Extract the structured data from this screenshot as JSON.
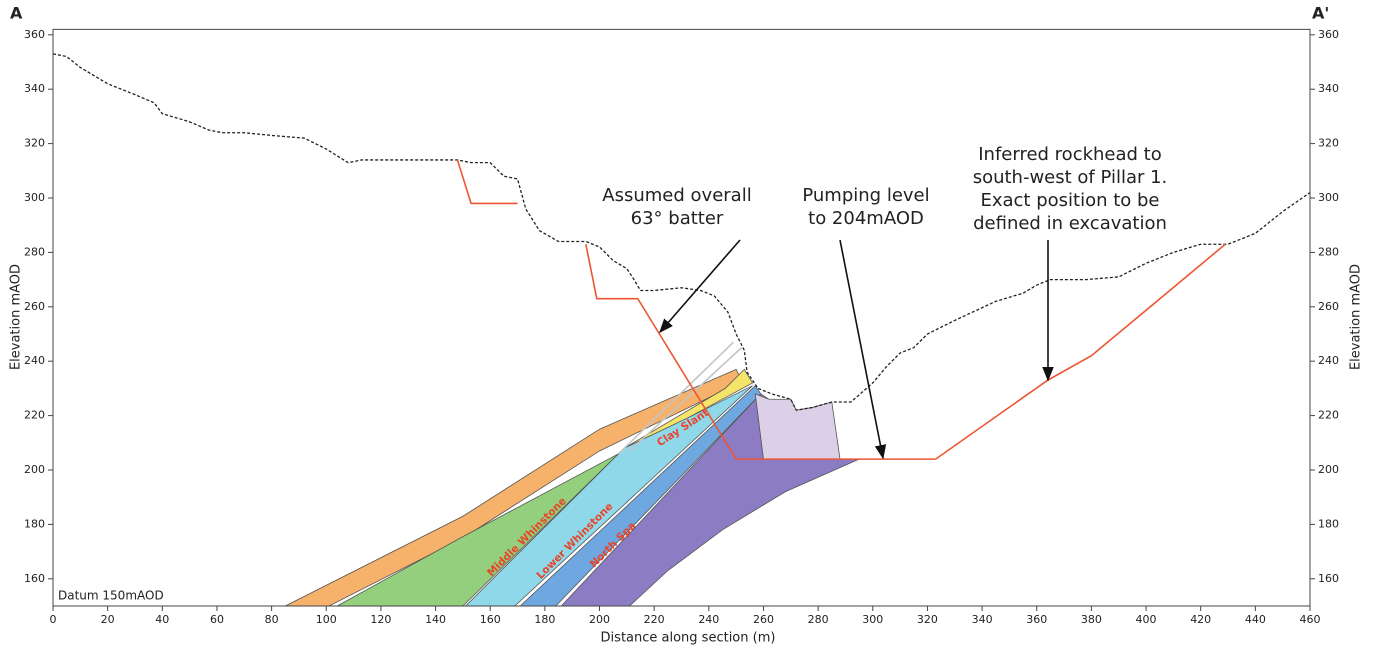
{
  "chart_data": {
    "type": "line",
    "section_start": "A",
    "section_end": "A'",
    "datum": "Datum 150mAOD",
    "xlabel": "Distance along section (m)",
    "ylabel": "Elevation mAOD",
    "y2label": "Elevation mAOD",
    "xlim": [
      0,
      460
    ],
    "xticks": [
      0,
      20,
      40,
      60,
      80,
      100,
      120,
      140,
      160,
      180,
      200,
      220,
      240,
      260,
      280,
      300,
      320,
      340,
      360,
      380,
      400,
      420,
      440,
      460
    ],
    "ylim": [
      150,
      362
    ],
    "yticks": [
      160,
      180,
      200,
      220,
      240,
      260,
      280,
      300,
      320,
      340,
      360
    ],
    "y2lim": [
      150,
      362
    ],
    "y2ticks": [
      160,
      180,
      200,
      220,
      240,
      260,
      280,
      300,
      320,
      340,
      360
    ],
    "areas": [
      {
        "color": "#f6b26b",
        "x": [
          85,
          101,
          150,
          200,
          245,
          252,
          250,
          200,
          150
        ],
        "values": [
          150,
          150,
          175,
          207,
          229,
          233,
          237,
          215,
          183
        ]
      },
      {
        "color": "#93cf7c",
        "x": [
          104,
          150,
          207,
          150
        ],
        "values": [
          150,
          150,
          206,
          175.5
        ]
      },
      {
        "color": "#f4e46a",
        "label": "Clay Slant",
        "x": [
          209,
          246,
          253,
          256,
          232
        ],
        "values": [
          208,
          230,
          237,
          232,
          219
        ]
      },
      {
        "color": "#8fd8ea",
        "label": "Middle Whinstone",
        "x": [
          151,
          169,
          256,
          232,
          209
        ],
        "values": [
          150,
          150,
          231,
          219,
          208
        ]
      },
      {
        "color": "#6fa8e0",
        "label": "Lower Whinstone",
        "x": [
          171,
          184,
          259,
          257
        ],
        "values": [
          150,
          150,
          228,
          231
        ]
      },
      {
        "color": "#8b7cc4",
        "label": "North Spa",
        "x": [
          186,
          211,
          225,
          245,
          268,
          295,
          260,
          262,
          259
        ],
        "values": [
          150,
          150,
          163,
          178,
          192,
          204,
          204,
          226,
          228
        ]
      },
      {
        "color": "#dcd0e8",
        "x": [
          260,
          288,
          285,
          278,
          272,
          270,
          262,
          257
        ],
        "values": [
          204,
          204,
          225,
          223,
          222,
          226,
          226,
          228
        ]
      }
    ],
    "series": [
      {
        "color": "#c4c4c4",
        "x": [
          207,
          249
        ],
        "values": [
          206,
          247
        ]
      },
      {
        "color": "#c4c4c4",
        "x": [
          211,
          252
        ],
        "values": [
          207,
          245
        ]
      },
      {
        "color": "#222222",
        "style": "dotted",
        "x": [
          0,
          5,
          10,
          20,
          30,
          37,
          40,
          50,
          57,
          62,
          70,
          80,
          92,
          100,
          108,
          113,
          125,
          140,
          148,
          153,
          160,
          165,
          170,
          173,
          178,
          185,
          195,
          200,
          205,
          210,
          212,
          215,
          220,
          230,
          237,
          242,
          247,
          250,
          253,
          254,
          258,
          263,
          270,
          272,
          278,
          285,
          292,
          300,
          305,
          310,
          315,
          320,
          330,
          345,
          355,
          360,
          365,
          378,
          390,
          400,
          410,
          420,
          430,
          440,
          450,
          460
        ],
        "values": [
          353,
          352,
          348,
          342,
          338,
          335,
          331,
          328,
          325,
          324,
          324,
          323,
          322,
          318,
          313,
          314,
          314,
          314,
          314,
          313,
          313,
          308,
          307,
          296,
          288,
          284,
          284,
          282,
          277,
          274,
          271,
          266,
          266,
          267,
          266,
          264,
          258,
          250,
          244,
          236,
          230,
          228,
          226,
          222,
          223,
          225,
          225,
          232,
          238,
          243,
          245,
          250,
          255,
          262,
          265,
          268,
          270,
          270,
          271,
          276,
          280,
          283,
          283,
          287,
          295,
          302
        ]
      },
      {
        "color": "#ee5533",
        "x": [
          148,
          153,
          170,
          null,
          195,
          199,
          214,
          250,
          323,
          364,
          380,
          429
        ],
        "values": [
          314,
          298,
          298,
          null,
          283,
          263,
          263,
          204,
          204,
          233,
          242,
          283
        ]
      }
    ],
    "annotations": [
      {
        "lines": [
          "Assumed overall",
          "63° batter"
        ]
      },
      {
        "lines": [
          "Pumping level",
          "to 204mAOD"
        ]
      },
      {
        "lines": [
          "Inferred rockhead to",
          "south-west of Pillar 1.",
          "Exact position to be",
          "defined in excavation"
        ]
      }
    ]
  }
}
